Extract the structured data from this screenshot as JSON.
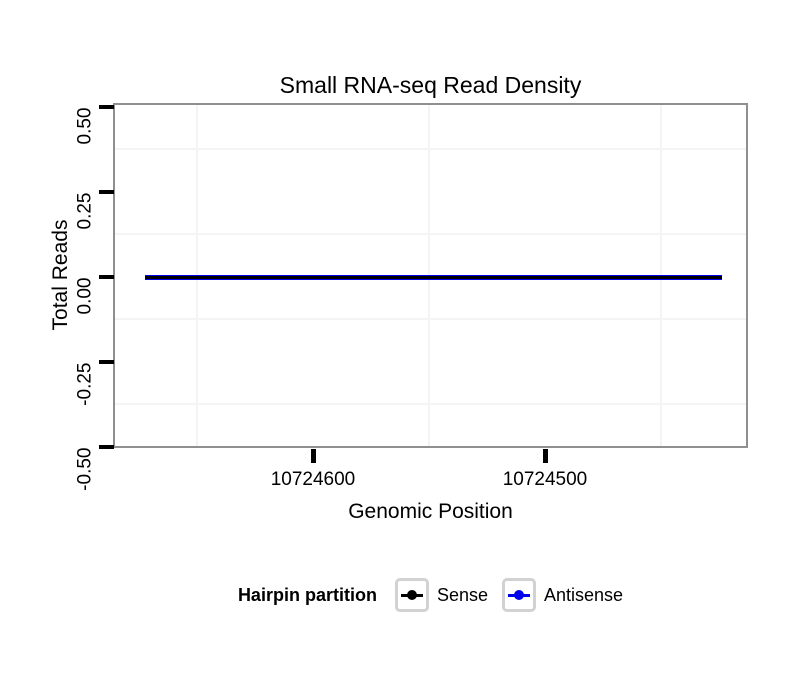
{
  "page": {
    "background": "#ffffff"
  },
  "chart_data": {
    "type": "line",
    "title": "Small RNA-seq Read Density",
    "xlabel": "Genomic Position",
    "ylabel": "Total Reads",
    "x_axis": {
      "reversed": true,
      "tick_labels": [
        "10724600",
        "10724500"
      ],
      "tick_values": [
        10724600,
        10724500
      ],
      "approx_range_left_to_right": [
        10724686,
        10724412
      ],
      "minor_gridline_values": [
        10724650,
        10724550,
        10724450
      ]
    },
    "y_axis": {
      "tick_labels": [
        "0.50",
        "0.25",
        "0.00",
        "-0.25",
        "-0.50"
      ],
      "tick_values": [
        0.5,
        0.25,
        0.0,
        -0.25,
        -0.5
      ],
      "range": [
        -0.5,
        0.5
      ],
      "minor_gridline_values": [
        0.375,
        0.125,
        -0.125,
        -0.375
      ]
    },
    "grid": {
      "minor_color": "#f4f4f4",
      "panel_border_color": "#8f8f8f",
      "background": "#ffffff"
    },
    "legend": {
      "title": "Hairpin partition",
      "position": "bottom",
      "key_border_color": "#d2d2d2",
      "entries": [
        {
          "label": "Sense",
          "color": "#000000"
        },
        {
          "label": "Antisense",
          "color": "#0000ee"
        }
      ]
    },
    "series": [
      {
        "name": "Sense",
        "color": "#000000",
        "constant_y": 0,
        "x_start": 10724672,
        "x_end": 10724424
      },
      {
        "name": "Antisense",
        "color": "#0000ee",
        "constant_y": 0,
        "x_start": 10724672,
        "x_end": 10724424
      }
    ]
  }
}
